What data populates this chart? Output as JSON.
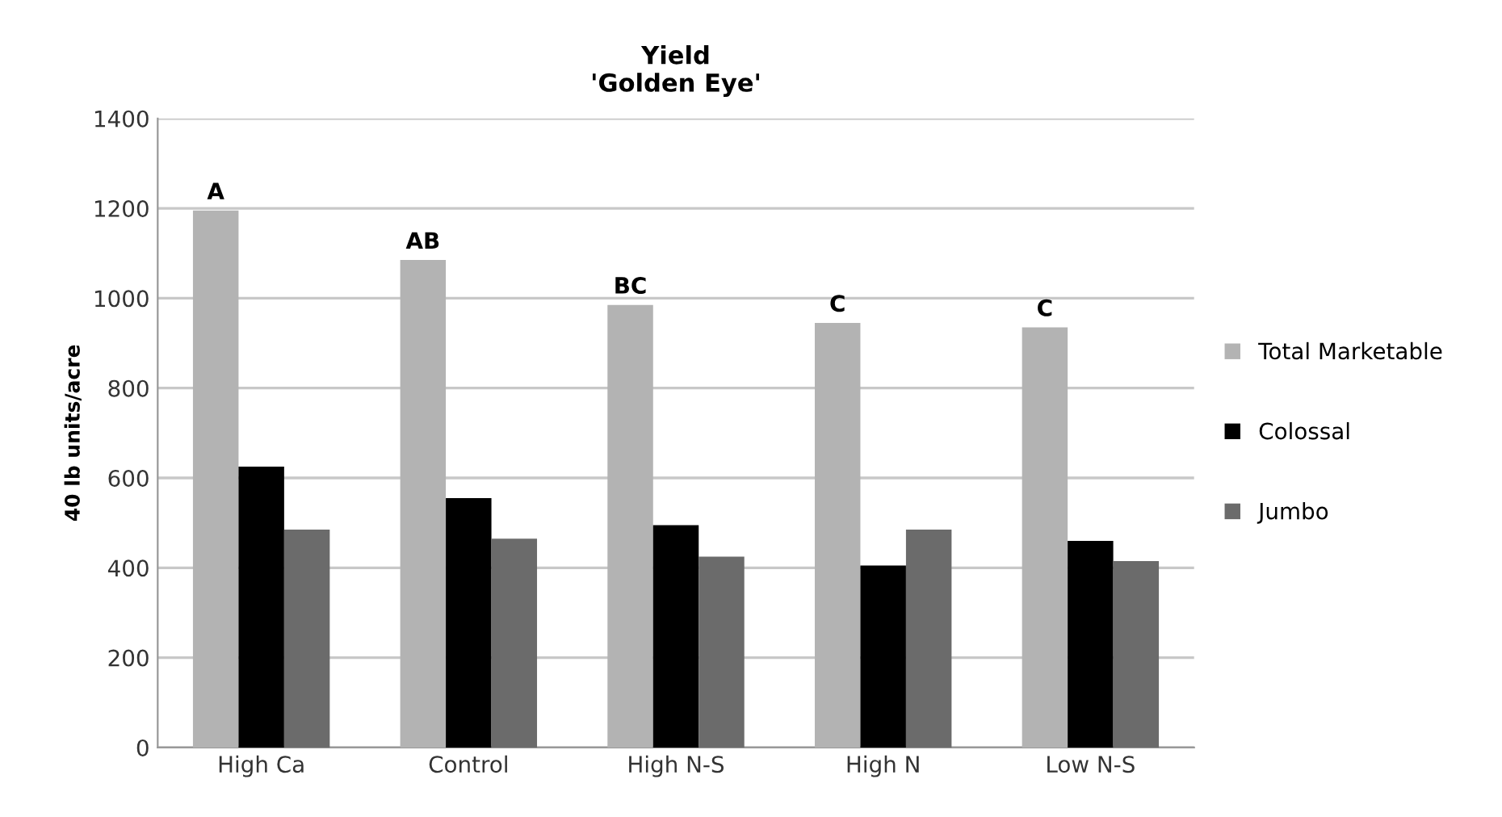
{
  "chart_data": {
    "type": "bar",
    "title": "Yield\n'Golden Eye'",
    "ylabel": "40 lb units/acre",
    "categories": [
      "High Ca",
      "Control",
      "High N-S",
      "High N",
      "Low N-S"
    ],
    "series": [
      {
        "name": "Total Marketable",
        "color": "#b3b3b3",
        "values": [
          1195,
          1085,
          985,
          945,
          935
        ]
      },
      {
        "name": "Colossal",
        "color": "#000000",
        "values": [
          625,
          555,
          495,
          405,
          460
        ]
      },
      {
        "name": "Jumbo",
        "color": "#6b6b6b",
        "values": [
          485,
          465,
          425,
          485,
          415
        ]
      }
    ],
    "annotations": [
      "A",
      "AB",
      "BC",
      "C",
      "C"
    ],
    "ylim": [
      0,
      1400
    ],
    "yticks": [
      0,
      200,
      400,
      600,
      800,
      1000,
      1200,
      1400
    ],
    "grid": "y",
    "legend": "right"
  }
}
